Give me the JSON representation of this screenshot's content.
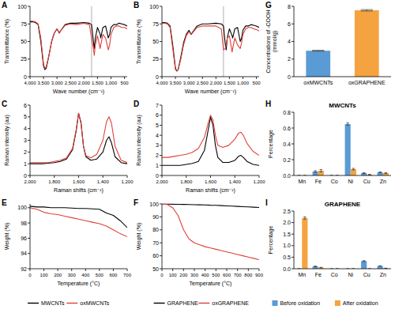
{
  "chart_data": [
    {
      "type": "line",
      "panel": "A",
      "y_label": "Transmittance (%)",
      "x_label": "Wave number (cm⁻¹)",
      "x": [
        4000,
        3900,
        3800,
        3700,
        3600,
        3500,
        3450,
        3400,
        3300,
        3200,
        3100,
        3000,
        2920,
        2850,
        2700,
        2500,
        2300,
        2000,
        1800,
        1720,
        1650,
        1620,
        1580,
        1500,
        1400,
        1380,
        1300,
        1200,
        1100,
        1050,
        1000,
        900,
        800,
        700,
        600,
        500,
        400
      ],
      "series": [
        {
          "name": "MWCNTs",
          "color": "#000000",
          "values": [
            78,
            78,
            77,
            74,
            50,
            15,
            10,
            12,
            30,
            50,
            62,
            68,
            62,
            66,
            74,
            76,
            76,
            77,
            76,
            74,
            50,
            40,
            55,
            70,
            60,
            55,
            70,
            72,
            55,
            60,
            70,
            74,
            74,
            76,
            75,
            74,
            72
          ]
        },
        {
          "name": "oxMWCNTs",
          "color": "#e0403a",
          "values": [
            79,
            79,
            78,
            75,
            55,
            18,
            12,
            14,
            30,
            50,
            62,
            68,
            62,
            66,
            73,
            75,
            74,
            76,
            74,
            55,
            40,
            30,
            45,
            58,
            40,
            45,
            60,
            55,
            38,
            45,
            60,
            70,
            72,
            72,
            70,
            70,
            68
          ]
        }
      ],
      "reference_lines": [
        1720
      ],
      "xlim": [
        4000,
        400
      ],
      "ylim": [
        0,
        100
      ],
      "xticks": [
        {
          "value": 4000,
          "label": "4,000"
        },
        {
          "value": 3500,
          "label": "3,500"
        },
        {
          "value": 3000,
          "label": "3,000"
        },
        {
          "value": 2500,
          "label": "2,500"
        },
        {
          "value": 2000,
          "label": "2,000"
        },
        {
          "value": 1500,
          "label": "1,500"
        },
        {
          "value": 1000,
          "label": "1,000"
        },
        500
      ],
      "yticks": [
        0,
        25,
        50,
        75,
        100
      ]
    },
    {
      "type": "line",
      "panel": "B",
      "y_label": "Transmittance (%)",
      "x_label": "Wave number (cm⁻¹)",
      "x": [
        4000,
        3900,
        3800,
        3700,
        3600,
        3500,
        3450,
        3400,
        3300,
        3200,
        3100,
        3000,
        2920,
        2850,
        2700,
        2500,
        2300,
        2000,
        1800,
        1720,
        1650,
        1620,
        1580,
        1500,
        1400,
        1380,
        1300,
        1200,
        1100,
        1050,
        1000,
        900,
        800,
        700,
        600,
        500,
        400
      ],
      "series": [
        {
          "name": "GRAPHENE",
          "color": "#000000",
          "values": [
            77,
            77,
            76,
            72,
            45,
            12,
            8,
            10,
            28,
            48,
            60,
            66,
            60,
            64,
            72,
            75,
            75,
            76,
            75,
            72,
            45,
            38,
            55,
            68,
            58,
            55,
            68,
            70,
            50,
            55,
            66,
            72,
            72,
            74,
            73,
            72,
            70
          ]
        },
        {
          "name": "oxGRAPHENE",
          "color": "#e0403a",
          "values": [
            76,
            76,
            75,
            70,
            40,
            10,
            8,
            10,
            25,
            45,
            58,
            64,
            60,
            63,
            70,
            72,
            72,
            72,
            68,
            38,
            40,
            45,
            55,
            58,
            35,
            40,
            55,
            45,
            40,
            48,
            60,
            68,
            70,
            70,
            68,
            67,
            65
          ]
        }
      ],
      "reference_lines": [
        1720
      ],
      "xlim": [
        4000,
        400
      ],
      "ylim": [
        0,
        100
      ],
      "xticks": [
        {
          "value": 4000,
          "label": "4,000"
        },
        {
          "value": 3500,
          "label": "3,500"
        },
        {
          "value": 3000,
          "label": "3,000"
        },
        {
          "value": 2500,
          "label": "2,500"
        },
        {
          "value": 2000,
          "label": "2,000"
        },
        {
          "value": 1500,
          "label": "1,500"
        },
        {
          "value": 1000,
          "label": "1,000"
        },
        500
      ],
      "yticks": [
        0,
        25,
        50,
        75,
        100
      ]
    },
    {
      "type": "line",
      "panel": "C",
      "y_label": "Raman intensity (au)",
      "x_label": "Raman shifts (cm⁻¹)",
      "x": [
        2000,
        1950,
        1900,
        1850,
        1800,
        1750,
        1700,
        1650,
        1620,
        1600,
        1580,
        1560,
        1540,
        1500,
        1450,
        1400,
        1370,
        1350,
        1330,
        1300,
        1250,
        1200
      ],
      "series": [
        {
          "name": "MWCNTs",
          "color": "#000000",
          "values": [
            1.0,
            1.0,
            1.0,
            1.05,
            1.1,
            1.2,
            1.4,
            2.2,
            3.8,
            5.3,
            4.5,
            2.5,
            1.6,
            1.3,
            1.4,
            2.0,
            3.0,
            3.3,
            2.8,
            1.6,
            1.1,
            1.0
          ]
        },
        {
          "name": "oxMWCNTs",
          "color": "#e0403a",
          "values": [
            1.1,
            1.1,
            1.1,
            1.1,
            1.2,
            1.3,
            1.5,
            2.3,
            3.9,
            5.3,
            4.4,
            2.5,
            1.7,
            1.5,
            1.8,
            3.0,
            4.6,
            5.0,
            4.5,
            2.5,
            1.3,
            1.1
          ]
        }
      ],
      "xlim": [
        2000,
        1200
      ],
      "ylim": [
        0,
        6
      ],
      "xticks": [
        {
          "value": 2000,
          "label": "2,000"
        },
        {
          "value": 1800,
          "label": "1,800"
        },
        {
          "value": 1600,
          "label": "1,600"
        },
        {
          "value": 1400,
          "label": "1,400"
        },
        {
          "value": 1200,
          "label": "1,200"
        }
      ],
      "yticks": [
        0,
        1,
        2,
        3,
        4,
        5,
        6
      ]
    },
    {
      "type": "line",
      "panel": "D",
      "y_label": "Raman intensity (au)",
      "x_label": "Raman shifts (cm⁻¹)",
      "x": [
        2000,
        1950,
        1900,
        1850,
        1800,
        1750,
        1700,
        1650,
        1620,
        1600,
        1580,
        1560,
        1540,
        1500,
        1450,
        1400,
        1370,
        1350,
        1330,
        1300,
        1250,
        1200
      ],
      "series": [
        {
          "name": "GRAPHENE",
          "color": "#000000",
          "values": [
            1.0,
            1.0,
            1.0,
            1.0,
            1.1,
            1.2,
            1.4,
            2.5,
            4.5,
            5.8,
            5.0,
            3.0,
            1.8,
            1.3,
            1.3,
            1.5,
            1.9,
            2.0,
            1.8,
            1.4,
            1.1,
            1.0
          ]
        },
        {
          "name": "oxGRAPHENE",
          "color": "#e0403a",
          "values": [
            1.8,
            1.8,
            1.9,
            2.0,
            2.1,
            2.3,
            2.7,
            3.8,
            5.2,
            6.0,
            5.5,
            4.0,
            3.0,
            2.8,
            3.0,
            3.6,
            4.2,
            4.3,
            4.0,
            3.2,
            2.4,
            2.0
          ]
        }
      ],
      "xlim": [
        2000,
        1200
      ],
      "ylim": [
        0,
        7
      ],
      "xticks": [
        {
          "value": 2000,
          "label": "2,000"
        },
        {
          "value": 1800,
          "label": "1,800"
        },
        {
          "value": 1600,
          "label": "1,600"
        },
        {
          "value": 1400,
          "label": "1,400"
        },
        {
          "value": 1200,
          "label": "1,200"
        }
      ],
      "yticks": [
        0,
        1,
        2,
        3,
        4,
        5,
        6,
        7
      ]
    },
    {
      "type": "line",
      "panel": "E",
      "y_label": "Weight (%)",
      "x_label": "Temperature (°C)",
      "x": [
        0,
        50,
        100,
        150,
        200,
        250,
        300,
        350,
        400,
        450,
        500,
        550,
        600,
        650,
        700
      ],
      "series": [
        {
          "name": "MWCNTs",
          "color": "#000000",
          "values": [
            100.2,
            100.1,
            100.1,
            100.0,
            100.0,
            100.0,
            99.95,
            99.9,
            99.9,
            99.85,
            99.8,
            99.3,
            99.0,
            98.3,
            97.4
          ]
        },
        {
          "name": "oxMWCNTs",
          "color": "#e0403a",
          "values": [
            100.0,
            99.8,
            99.4,
            99.2,
            99.1,
            98.9,
            98.7,
            98.5,
            98.3,
            98.1,
            97.9,
            97.6,
            97.1,
            96.6,
            96.2
          ]
        }
      ],
      "xlim": [
        0,
        700
      ],
      "ylim": [
        92,
        100.5
      ],
      "xticks": [
        0,
        100,
        200,
        300,
        400,
        500,
        600,
        700
      ],
      "yticks": [
        92,
        94,
        96,
        98,
        100
      ],
      "legend": "bottom"
    },
    {
      "type": "line",
      "panel": "F",
      "y_label": "Weight (%)",
      "x_label": "Temperature (°C)",
      "x": [
        0,
        50,
        100,
        150,
        200,
        250,
        300,
        350,
        400,
        450,
        500,
        550,
        600,
        650,
        700,
        750,
        800,
        850,
        900
      ],
      "series": [
        {
          "name": "GRAPHENE",
          "color": "#000000",
          "values": [
            100,
            99.9,
            99.8,
            99.7,
            99.6,
            99.5,
            99.4,
            99.3,
            99.2,
            99.0,
            98.9,
            98.7,
            98.5,
            98.3,
            98.1,
            97.9,
            97.7,
            97.5,
            97.3
          ]
        },
        {
          "name": "oxGRAPHENE",
          "color": "#e0403a",
          "values": [
            100,
            99.5,
            97,
            91,
            80,
            73,
            70,
            68.5,
            67,
            66,
            65,
            64,
            63,
            62,
            61,
            60,
            59,
            58,
            57
          ]
        }
      ],
      "xlim": [
        0,
        900
      ],
      "ylim": [
        50,
        100
      ],
      "xticks": [
        0,
        100,
        200,
        300,
        400,
        500,
        600,
        700,
        800,
        900
      ],
      "yticks": [
        50,
        60,
        70,
        80,
        90,
        100
      ],
      "legend": "bottom"
    },
    {
      "type": "bar",
      "panel": "G",
      "y_label": "Concentrations of -COOH (mmol/g)",
      "categories": [
        "oxMWCNTs",
        "oxGRAPHENE"
      ],
      "values": [
        2.95,
        7.55
      ],
      "errors": [
        0.05,
        0.08
      ],
      "colors": [
        "#5b9bd5",
        "#f5a340"
      ],
      "ylim": [
        0,
        8
      ],
      "yticks": [
        0,
        2,
        4,
        6,
        8
      ]
    },
    {
      "type": "bar",
      "panel": "H",
      "title": "MWCNTs",
      "y_label": "Percentage",
      "categories": [
        "Mn",
        "Fe",
        "Co",
        "Ni",
        "Cu",
        "Zn"
      ],
      "series": [
        {
          "name": "Before oxidation",
          "color": "#5b9bd5",
          "values": [
            0,
            0.05,
            0,
            0.65,
            0.03,
            0.04
          ],
          "errors": [
            0,
            0.01,
            0,
            0.015,
            0.005,
            0.005
          ]
        },
        {
          "name": "After oxidation",
          "color": "#f5a340",
          "values": [
            0,
            0.06,
            0,
            0.08,
            0.01,
            0.03
          ],
          "errors": [
            0,
            0.015,
            0,
            0.01,
            0.005,
            0.005
          ]
        }
      ],
      "ylim": [
        0,
        0.8
      ],
      "yticks": [
        {
          "value": 0,
          "label": "0.0"
        },
        0.2,
        0.4,
        0.6,
        0.8
      ]
    },
    {
      "type": "bar",
      "panel": "I",
      "title": "GRAPHENE",
      "y_label": "Percentage",
      "categories": [
        "Mn",
        "Fe",
        "Co",
        "Ni",
        "Cu",
        "Zn"
      ],
      "series": [
        {
          "name": "Before oxidation",
          "color": "#5b9bd5",
          "values": [
            0,
            0.1,
            0,
            0,
            0.33,
            0.12
          ],
          "errors": [
            0,
            0.02,
            0,
            0,
            0.02,
            0.01
          ]
        },
        {
          "name": "After oxidation",
          "color": "#f5a340",
          "values": [
            2.2,
            0.05,
            0,
            0,
            0,
            0.02
          ],
          "errors": [
            0.05,
            0.01,
            0,
            0,
            0,
            0.005
          ]
        }
      ],
      "ylim": [
        0,
        2.5
      ],
      "yticks": [
        {
          "value": 0,
          "label": "0.0"
        },
        0.5,
        {
          "value": 1,
          "label": "1.0"
        },
        1.5,
        {
          "value": 2,
          "label": "2.0"
        },
        2.5
      ],
      "legend": "bottom"
    }
  ]
}
